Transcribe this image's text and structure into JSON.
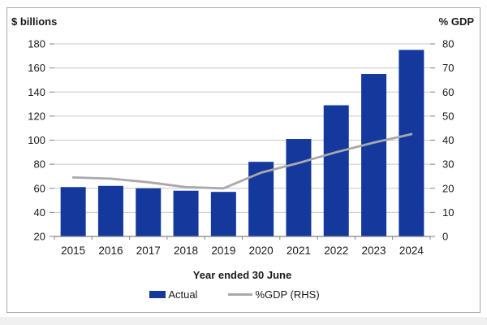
{
  "page": {
    "bottom_strip_color": "#F0F0F0"
  },
  "chart_data": {
    "type": "bar",
    "subtype": "bar-line-combo",
    "categories": [
      "2015",
      "2016",
      "2017",
      "2018",
      "2019",
      "2020",
      "2021",
      "2022",
      "2023",
      "2024"
    ],
    "series": [
      {
        "name": "Actual",
        "type": "bar",
        "axis": "left",
        "color": "#14389C",
        "values": [
          61,
          62,
          60,
          58,
          57,
          82,
          101,
          129,
          155,
          175
        ]
      },
      {
        "name": "%GDP (RHS)",
        "type": "line",
        "axis": "right",
        "color": "#A9A9A9",
        "values": [
          24.5,
          24,
          22.5,
          20.5,
          20,
          26.5,
          30.5,
          35,
          39,
          42.5
        ]
      }
    ],
    "left_axis": {
      "title": "$ billions",
      "min": 20,
      "max": 180,
      "step": 20
    },
    "right_axis": {
      "title": "% GDP",
      "min": 0,
      "max": 80,
      "step": 10
    },
    "xlabel": "Year ended 30 June",
    "legend_position": "bottom",
    "grid": true,
    "gridline_color": "#C9C9C9",
    "axis_line_color": "#808080",
    "tick_color": "#808080",
    "border_color": "#A6A6A6",
    "text_color": "#1A1A1A"
  }
}
